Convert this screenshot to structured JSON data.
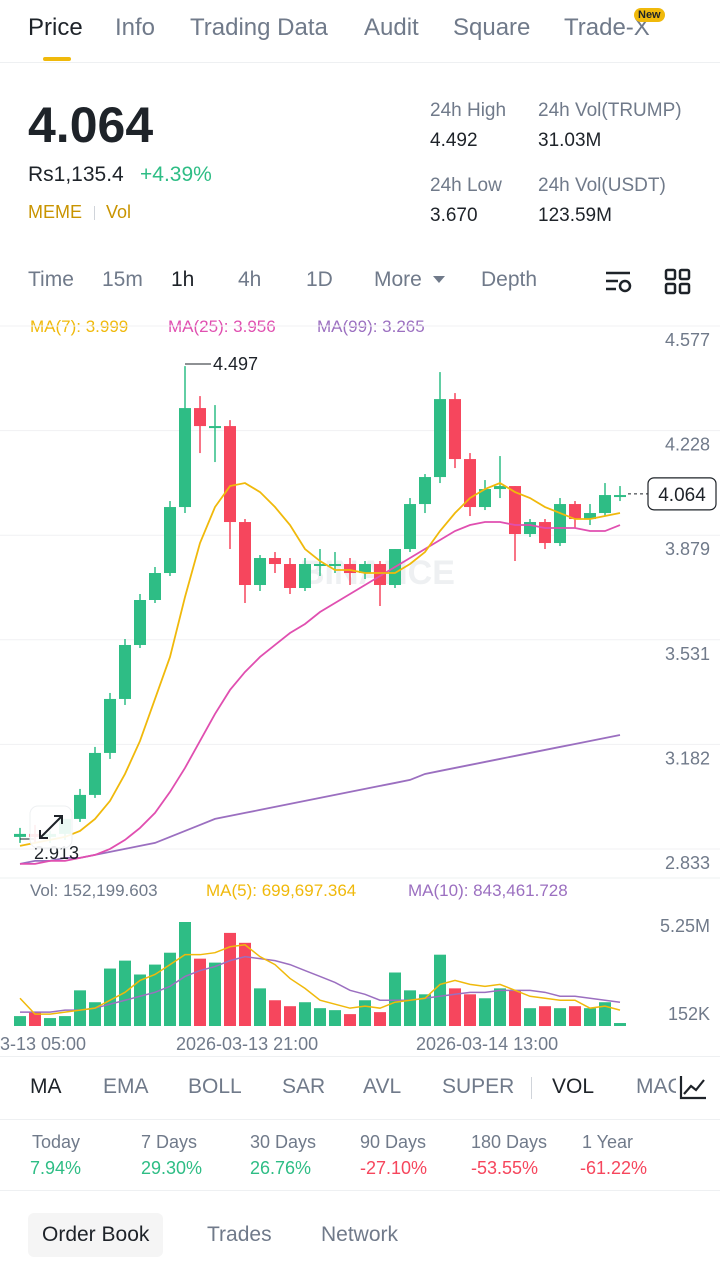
{
  "tabs": [
    {
      "label": "Price"
    },
    {
      "label": "Info"
    },
    {
      "label": "Trading Data"
    },
    {
      "label": "Audit"
    },
    {
      "label": "Square"
    },
    {
      "label": "Trade-X"
    }
  ],
  "new_badge": "New",
  "ticker": {
    "price": "4.064",
    "fiat": "Rs1,135.4",
    "change": "+4.39%",
    "tag1": "MEME",
    "tag2": "Vol",
    "high_label": "24h High",
    "high": "4.492",
    "low_label": "24h Low",
    "low": "3.670",
    "vol_base_label": "24h Vol(TRUMP)",
    "vol_base": "31.03M",
    "vol_quote_label": "24h Vol(USDT)",
    "vol_quote": "123.59M"
  },
  "intervals": [
    "Time",
    "15m",
    "1h",
    "4h",
    "1D",
    "More",
    "Depth"
  ],
  "active_interval": "1h",
  "ma_legend": {
    "ma7": "MA(7): 3.999",
    "ma25": "MA(25): 3.956",
    "ma99": "MA(99): 3.265"
  },
  "vol_legend": {
    "vol": "Vol: 152,199.603",
    "ma5": "MA(5): 699,697.364",
    "ma10": "MA(10): 843,461.728"
  },
  "indicators": [
    "MA",
    "EMA",
    "BOLL",
    "SAR",
    "AVL",
    "SUPER",
    "VOL",
    "MACD"
  ],
  "performance": [
    {
      "label": "Today",
      "value": "7.94%",
      "up": true
    },
    {
      "label": "7 Days",
      "value": "29.30%",
      "up": true
    },
    {
      "label": "30 Days",
      "value": "26.76%",
      "up": true
    },
    {
      "label": "90 Days",
      "value": "-27.10%",
      "up": false
    },
    {
      "label": "180 Days",
      "value": "-53.55%",
      "up": false
    },
    {
      "label": "1 Year",
      "value": "-61.22%",
      "up": false
    }
  ],
  "bottom_tabs": [
    "Order Book",
    "Trades",
    "Network"
  ],
  "colors": {
    "up": "#2ebd85",
    "down": "#f6465d",
    "ma7": "#f0b90b",
    "ma25": "#e04fb0",
    "ma99": "#9b6fc0",
    "accent": "#f0b90b"
  },
  "chart_data": {
    "type": "candlestick",
    "y_ticks": [
      "4.577",
      "4.228",
      "3.879",
      "3.531",
      "3.182",
      "2.833"
    ],
    "y_range": [
      2.833,
      4.577
    ],
    "last_price": "4.064",
    "high_marker": "4.497",
    "low_marker": "2.913",
    "x_labels": [
      "3-13 05:00",
      "2026-03-13 21:00",
      "2026-03-14 13:00"
    ],
    "vol_ticks": [
      "5.25M",
      "152K"
    ],
    "candles": [
      {
        "o": 2.92,
        "h": 2.95,
        "l": 2.9,
        "c": 2.93
      },
      {
        "o": 2.93,
        "h": 2.96,
        "l": 2.9,
        "c": 2.92
      },
      {
        "o": 2.92,
        "h": 2.94,
        "l": 2.9,
        "c": 2.93
      },
      {
        "o": 2.93,
        "h": 2.98,
        "l": 2.91,
        "c": 2.98
      },
      {
        "o": 2.98,
        "h": 3.08,
        "l": 2.97,
        "c": 3.06
      },
      {
        "o": 3.06,
        "h": 3.22,
        "l": 3.05,
        "c": 3.2
      },
      {
        "o": 3.2,
        "h": 3.4,
        "l": 3.18,
        "c": 3.38
      },
      {
        "o": 3.38,
        "h": 3.58,
        "l": 3.36,
        "c": 3.56
      },
      {
        "o": 3.56,
        "h": 3.73,
        "l": 3.55,
        "c": 3.71
      },
      {
        "o": 3.71,
        "h": 3.82,
        "l": 3.7,
        "c": 3.8
      },
      {
        "o": 3.8,
        "h": 4.04,
        "l": 3.79,
        "c": 4.02
      },
      {
        "o": 4.02,
        "h": 4.49,
        "l": 4.0,
        "c": 4.35
      },
      {
        "o": 4.35,
        "h": 4.39,
        "l": 4.2,
        "c": 4.29
      },
      {
        "o": 4.29,
        "h": 4.36,
        "l": 4.17,
        "c": 4.29
      },
      {
        "o": 4.29,
        "h": 4.31,
        "l": 3.88,
        "c": 3.97
      },
      {
        "o": 3.97,
        "h": 3.98,
        "l": 3.7,
        "c": 3.76
      },
      {
        "o": 3.76,
        "h": 3.86,
        "l": 3.74,
        "c": 3.85
      },
      {
        "o": 3.85,
        "h": 3.87,
        "l": 3.8,
        "c": 3.83
      },
      {
        "o": 3.83,
        "h": 3.85,
        "l": 3.73,
        "c": 3.75
      },
      {
        "o": 3.75,
        "h": 3.85,
        "l": 3.74,
        "c": 3.83
      },
      {
        "o": 3.83,
        "h": 3.88,
        "l": 3.79,
        "c": 3.83
      },
      {
        "o": 3.83,
        "h": 3.87,
        "l": 3.8,
        "c": 3.83
      },
      {
        "o": 3.83,
        "h": 3.85,
        "l": 3.76,
        "c": 3.8
      },
      {
        "o": 3.8,
        "h": 3.84,
        "l": 3.78,
        "c": 3.83
      },
      {
        "o": 3.83,
        "h": 3.84,
        "l": 3.69,
        "c": 3.76
      },
      {
        "o": 3.76,
        "h": 3.88,
        "l": 3.75,
        "c": 3.88
      },
      {
        "o": 3.88,
        "h": 4.05,
        "l": 3.87,
        "c": 4.03
      },
      {
        "o": 4.03,
        "h": 4.13,
        "l": 4.0,
        "c": 4.12
      },
      {
        "o": 4.12,
        "h": 4.47,
        "l": 4.1,
        "c": 4.38
      },
      {
        "o": 4.38,
        "h": 4.4,
        "l": 4.15,
        "c": 4.18
      },
      {
        "o": 4.18,
        "h": 4.2,
        "l": 3.99,
        "c": 4.02
      },
      {
        "o": 4.02,
        "h": 4.11,
        "l": 4.01,
        "c": 4.08
      },
      {
        "o": 4.08,
        "h": 4.19,
        "l": 4.05,
        "c": 4.09
      },
      {
        "o": 4.09,
        "h": 4.09,
        "l": 3.84,
        "c": 3.93
      },
      {
        "o": 3.93,
        "h": 3.98,
        "l": 3.92,
        "c": 3.97
      },
      {
        "o": 3.97,
        "h": 3.98,
        "l": 3.88,
        "c": 3.9
      },
      {
        "o": 3.9,
        "h": 4.05,
        "l": 3.89,
        "c": 4.03
      },
      {
        "o": 4.03,
        "h": 4.04,
        "l": 3.95,
        "c": 3.98
      },
      {
        "o": 3.98,
        "h": 4.03,
        "l": 3.96,
        "c": 4.0
      },
      {
        "o": 4.0,
        "h": 4.1,
        "l": 3.99,
        "c": 4.06
      },
      {
        "o": 4.06,
        "h": 4.09,
        "l": 4.04,
        "c": 4.06
      }
    ],
    "ma7": [
      2.89,
      2.9,
      2.91,
      2.92,
      2.94,
      2.98,
      3.04,
      3.13,
      3.24,
      3.38,
      3.52,
      3.72,
      3.9,
      4.02,
      4.09,
      4.1,
      4.07,
      4.02,
      3.96,
      3.88,
      3.84,
      3.81,
      3.81,
      3.8,
      3.8,
      3.8,
      3.83,
      3.87,
      3.94,
      4.0,
      4.05,
      4.08,
      4.1,
      4.07,
      4.05,
      4.02,
      4.0,
      3.98,
      3.98,
      3.99,
      4.0
    ],
    "ma25": [
      2.83,
      2.83,
      2.84,
      2.84,
      2.85,
      2.86,
      2.88,
      2.91,
      2.95,
      3.0,
      3.07,
      3.15,
      3.24,
      3.33,
      3.41,
      3.47,
      3.52,
      3.56,
      3.6,
      3.63,
      3.67,
      3.7,
      3.73,
      3.76,
      3.79,
      3.82,
      3.85,
      3.88,
      3.91,
      3.94,
      3.96,
      3.97,
      3.97,
      3.96,
      3.96,
      3.95,
      3.95,
      3.95,
      3.94,
      3.94,
      3.96
    ],
    "ma99": [
      2.83,
      2.84,
      2.84,
      2.85,
      2.85,
      2.86,
      2.87,
      2.88,
      2.89,
      2.9,
      2.92,
      2.94,
      2.96,
      2.98,
      2.99,
      3.0,
      3.01,
      3.02,
      3.03,
      3.04,
      3.05,
      3.06,
      3.07,
      3.08,
      3.09,
      3.1,
      3.11,
      3.13,
      3.14,
      3.15,
      3.16,
      3.17,
      3.18,
      3.19,
      3.2,
      3.21,
      3.22,
      3.23,
      3.24,
      3.25,
      3.26
    ],
    "volume_max_M": 5.25,
    "volumes_M": [
      0.5,
      0.7,
      0.4,
      0.5,
      1.8,
      1.2,
      2.9,
      3.3,
      2.6,
      3.1,
      3.7,
      5.25,
      3.4,
      3.2,
      4.7,
      4.2,
      1.9,
      1.3,
      1.0,
      1.2,
      0.9,
      0.8,
      0.6,
      1.3,
      0.7,
      2.7,
      1.8,
      1.6,
      3.6,
      1.9,
      1.6,
      1.4,
      1.9,
      1.8,
      0.9,
      1.0,
      0.9,
      1.0,
      0.9,
      1.2,
      0.15
    ],
    "vol_ma5_M": [
      1.4,
      0.6,
      0.6,
      0.7,
      0.8,
      0.9,
      1.3,
      1.7,
      2.3,
      2.6,
      3.1,
      3.6,
      3.6,
      3.7,
      4.0,
      4.1,
      3.5,
      3.1,
      2.4,
      1.9,
      1.3,
      1.1,
      0.9,
      1.0,
      0.9,
      1.2,
      1.3,
      1.4,
      2.1,
      2.3,
      2.1,
      2.0,
      2.1,
      1.8,
      1.5,
      1.4,
      1.3,
      1.3,
      0.9,
      1.0,
      0.8
    ],
    "vol_ma10_M": [
      0.7,
      0.7,
      0.7,
      0.8,
      0.8,
      0.9,
      1.1,
      1.3,
      1.5,
      1.7,
      2.0,
      2.5,
      2.8,
      3.0,
      3.3,
      3.5,
      3.4,
      3.3,
      3.1,
      2.8,
      2.5,
      2.2,
      1.8,
      1.6,
      1.3,
      1.3,
      1.3,
      1.4,
      1.5,
      1.6,
      1.7,
      1.7,
      1.8,
      1.8,
      1.8,
      1.7,
      1.5,
      1.5,
      1.4,
      1.3,
      1.2
    ]
  }
}
